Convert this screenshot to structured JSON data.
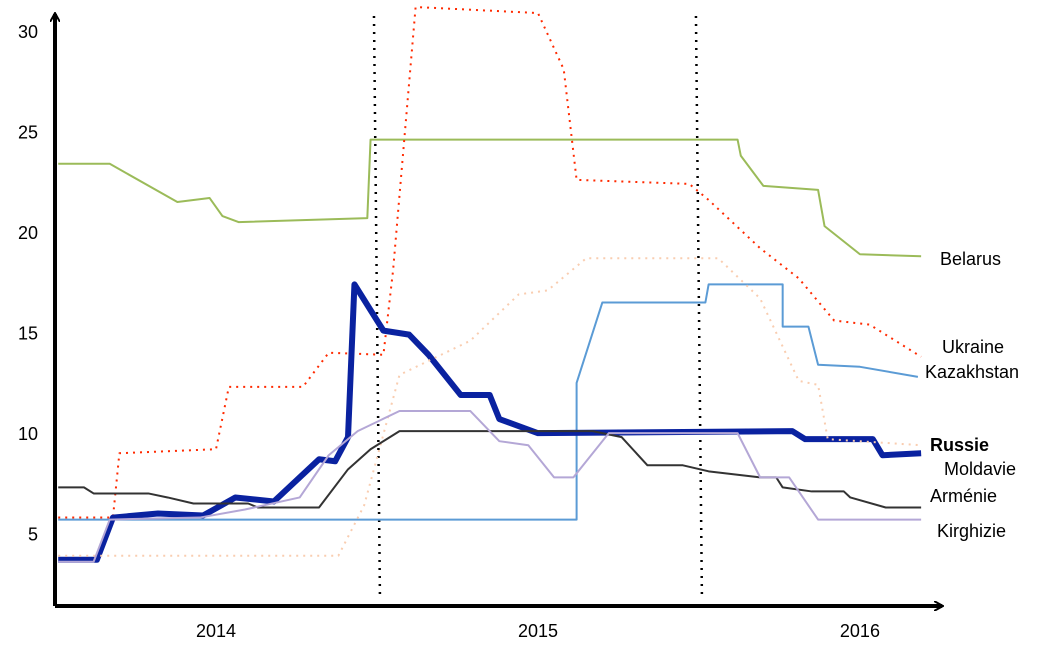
{
  "chart_data": {
    "type": "line",
    "xlim": [
      2013.5,
      2016.23
    ],
    "xticks": [
      2014,
      2015,
      2016
    ],
    "ylim": [
      1.5,
      31.5
    ],
    "yticks": [
      5,
      10,
      15,
      20,
      25,
      30
    ],
    "vlines": [
      2014.5,
      2015.5
    ],
    "series": [
      {
        "name": "Belarus",
        "color": "#9bbb59",
        "width": 2,
        "dash": "none",
        "bold": false,
        "x": [
          2013.51,
          2013.67,
          2013.88,
          2013.98,
          2014.02,
          2014.07,
          2014.47,
          2014.48,
          2015.62,
          2015.63,
          2015.7,
          2015.87,
          2015.89,
          2016.0,
          2016.19
        ],
        "values": [
          23.5,
          23.5,
          21.6,
          21.8,
          20.9,
          20.6,
          20.8,
          24.7,
          24.7,
          23.9,
          22.4,
          22.2,
          20.4,
          19.0,
          18.9
        ]
      },
      {
        "name": "Ukraine",
        "color": "#ff2a00",
        "width": 2,
        "dash": "2 5",
        "bold": false,
        "x": [
          2013.51,
          2013.68,
          2013.7,
          2014.0,
          2014.04,
          2014.27,
          2014.35,
          2014.52,
          2014.55,
          2014.62,
          2015.0,
          2015.08,
          2015.12,
          2015.47,
          2015.53,
          2015.69,
          2015.81,
          2015.92,
          2016.03,
          2016.19
        ],
        "values": [
          5.9,
          5.9,
          9.1,
          9.3,
          12.4,
          12.4,
          14.1,
          14.0,
          18.2,
          31.3,
          31.0,
          28.2,
          22.7,
          22.5,
          21.7,
          19.3,
          17.8,
          15.7,
          15.5,
          13.9
        ]
      },
      {
        "name": "Kazakhstan",
        "color": "#5b9bd5",
        "width": 2,
        "dash": "none",
        "bold": false,
        "x": [
          2013.51,
          2015.12,
          2015.12,
          2015.2,
          2015.52,
          2015.53,
          2015.76,
          2015.76,
          2015.84,
          2015.87,
          2016.0,
          2016.18
        ],
        "values": [
          5.8,
          5.8,
          12.6,
          16.6,
          16.6,
          17.5,
          17.5,
          15.4,
          15.4,
          13.5,
          13.4,
          12.9
        ]
      },
      {
        "name": "Russie",
        "color": "#0a22a0",
        "width": 6,
        "dash": "none",
        "bold": true,
        "x": [
          2013.51,
          2013.63,
          2013.68,
          2013.82,
          2013.96,
          2014.06,
          2014.18,
          2014.32,
          2014.37,
          2014.41,
          2014.43,
          2014.52,
          2014.6,
          2014.66,
          2014.76,
          2014.85,
          2014.88,
          2015.0,
          2015.79,
          2015.83,
          2016.04,
          2016.07,
          2016.19
        ],
        "values": [
          3.8,
          3.8,
          5.9,
          6.1,
          6.0,
          6.9,
          6.7,
          8.8,
          8.7,
          9.9,
          17.5,
          15.2,
          15.0,
          14.0,
          12.0,
          12.0,
          10.8,
          10.1,
          10.2,
          9.8,
          9.8,
          9.0,
          9.1
        ]
      },
      {
        "name": "Moldavie",
        "color": "#f9cdb0",
        "width": 2,
        "dash": "2 5",
        "bold": false,
        "x": [
          2013.51,
          2014.38,
          2014.46,
          2014.57,
          2014.79,
          2014.94,
          2015.03,
          2015.15,
          2015.56,
          2015.69,
          2015.81,
          2015.87,
          2015.9,
          2016.19
        ],
        "values": [
          4.0,
          4.0,
          6.5,
          13.0,
          14.7,
          17.0,
          17.2,
          18.8,
          18.8,
          16.8,
          12.7,
          12.5,
          9.8,
          9.5
        ]
      },
      {
        "name": "Arménie",
        "color": "#333333",
        "width": 2,
        "dash": "none",
        "bold": false,
        "x": [
          2013.51,
          2013.59,
          2013.62,
          2013.79,
          2013.85,
          2013.93,
          2014.1,
          2014.13,
          2014.32,
          2014.41,
          2014.48,
          2014.57,
          2015.17,
          2015.26,
          2015.34,
          2015.45,
          2015.53,
          2015.69,
          2015.74,
          2015.76,
          2015.85,
          2015.95,
          2015.97,
          2016.08,
          2016.19
        ],
        "values": [
          7.4,
          7.4,
          7.1,
          7.1,
          6.9,
          6.6,
          6.6,
          6.4,
          6.4,
          8.3,
          9.3,
          10.2,
          10.2,
          9.9,
          8.5,
          8.5,
          8.2,
          7.9,
          7.9,
          7.4,
          7.2,
          7.2,
          6.9,
          6.4,
          6.4
        ]
      },
      {
        "name": "Kirghizie",
        "color": "#b4a7d6",
        "width": 2,
        "dash": "none",
        "bold": false,
        "x": [
          2013.51,
          2013.62,
          2013.67,
          2013.95,
          2014.09,
          2014.26,
          2014.35,
          2014.44,
          2014.57,
          2014.79,
          2014.88,
          2014.97,
          2015.05,
          2015.11,
          2015.22,
          2015.62,
          2015.69,
          2015.78,
          2015.87,
          2016.19
        ],
        "values": [
          3.7,
          3.7,
          5.8,
          5.9,
          6.3,
          6.9,
          9.0,
          10.2,
          11.2,
          11.2,
          9.7,
          9.5,
          7.9,
          7.9,
          10.1,
          10.1,
          7.9,
          7.9,
          5.8,
          5.8
        ]
      }
    ]
  }
}
